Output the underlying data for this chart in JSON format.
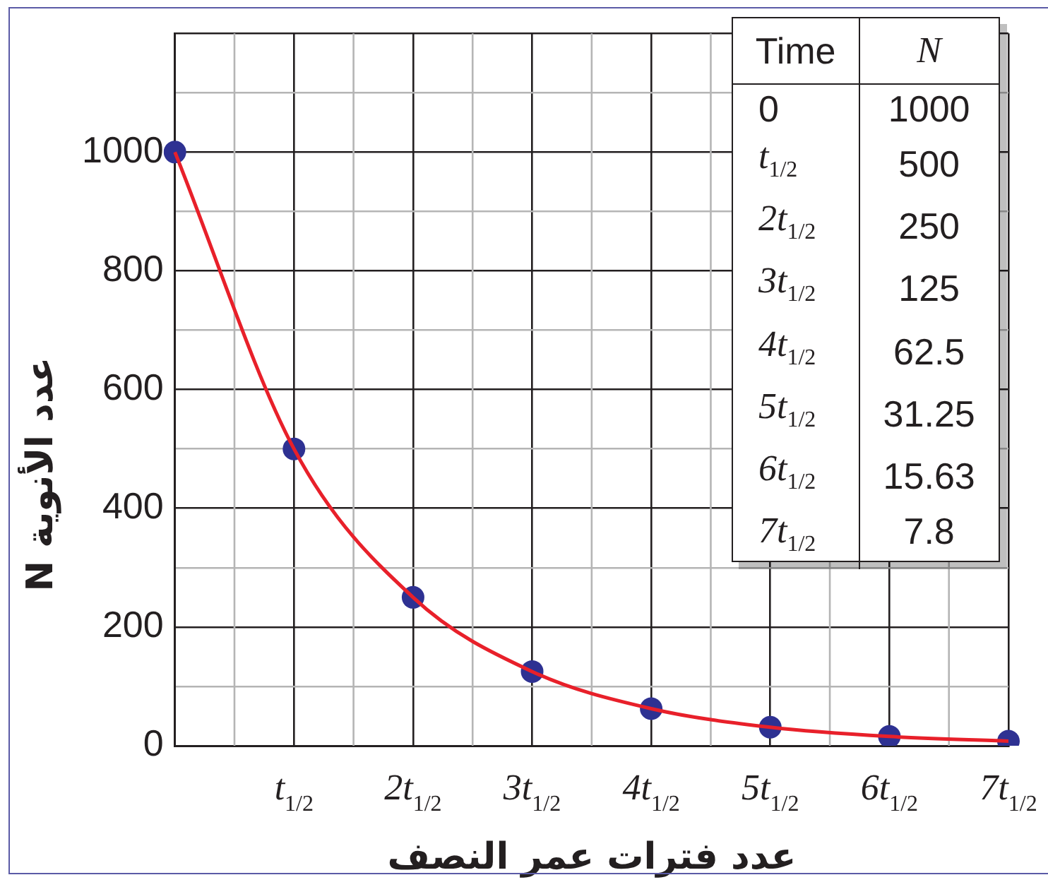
{
  "chart_data": [
    {
      "type": "line",
      "xlabel": "عدد فترات عمر النصف",
      "ylabel": "عدد الأنوية N",
      "categories": [
        null,
        "t$_{1/2}$",
        "2t$_{1/2}$",
        "3t$_{1/2}$",
        "4t$_{1/2}$",
        "5t$_{1/2}$",
        "6t$_{1/2}$",
        "7t$_{1/2}$"
      ],
      "series": [
        {
          "type": "line",
          "color": "#e8202a",
          "marker": "none",
          "values": [
            1000,
            500,
            250,
            125,
            62.5,
            31.25,
            15.63,
            7.8
          ]
        },
        {
          "type": "scatter",
          "color": "#2e3192",
          "marker": "circle",
          "values": [
            1000,
            500,
            250,
            125,
            62.5,
            31.25,
            15.63,
            7.8
          ]
        }
      ],
      "ylim": [
        0,
        1200
      ],
      "yticks": [
        0,
        {
          "value": 100,
          "label": null
        },
        200,
        {
          "value": 300,
          "label": null
        },
        400,
        {
          "value": 500,
          "label": null
        },
        600,
        {
          "value": 700,
          "label": null
        },
        800,
        {
          "value": 900,
          "label": null
        },
        1000,
        {
          "value": 1100,
          "label": null
        },
        {
          "value": 1200,
          "label": null
        }
      ],
      "grid": true
    },
    {
      "type": "other",
      "annotations": [
        "Time",
        "N",
        "0",
        "1000",
        "t$_{1/2}$",
        "500",
        "2t$_{1/2}$",
        "250",
        "3t$_{1/2}$",
        "125",
        "4t$_{1/2}$",
        "62.5",
        "5t$_{1/2}$",
        "31.25",
        "6t$_{1/2}$",
        "15.63",
        "7t$_{1/2}$",
        "7.8"
      ]
    }
  ]
}
